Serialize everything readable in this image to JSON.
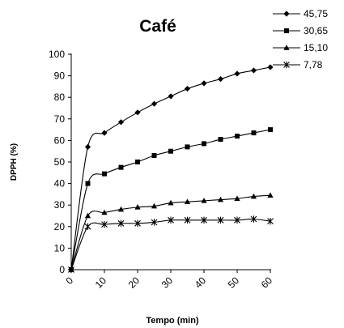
{
  "chart_data": {
    "type": "line",
    "title": "Café",
    "xlabel": "Tempo (min)",
    "ylabel": "DPPH (%)",
    "xlim": [
      0,
      60
    ],
    "ylim": [
      0,
      100
    ],
    "x_ticks": [
      0,
      10,
      20,
      30,
      40,
      50,
      60
    ],
    "y_ticks": [
      0,
      10,
      20,
      30,
      40,
      50,
      60,
      70,
      80,
      90,
      100
    ],
    "grid": false,
    "legend_position": "top-right",
    "series": [
      {
        "name": "45,75",
        "marker": "diamond",
        "x": [
          0,
          5,
          10,
          15,
          20,
          25,
          30,
          35,
          40,
          45,
          50,
          55,
          60
        ],
        "y": [
          0,
          57,
          63.5,
          68.5,
          73,
          77,
          80.5,
          84,
          86.5,
          88.5,
          91,
          92.5,
          94
        ]
      },
      {
        "name": "30,65",
        "marker": "square",
        "x": [
          0,
          5,
          10,
          15,
          20,
          25,
          30,
          35,
          40,
          45,
          50,
          55,
          60
        ],
        "y": [
          0,
          40,
          44.5,
          47.5,
          50,
          53,
          55,
          57,
          58.5,
          60.5,
          62,
          63.5,
          65
        ]
      },
      {
        "name": "15,10",
        "marker": "triangle",
        "x": [
          0,
          5,
          10,
          15,
          20,
          25,
          30,
          35,
          40,
          45,
          50,
          55,
          60
        ],
        "y": [
          0,
          25,
          26.5,
          28,
          29,
          29.5,
          31,
          31.5,
          32,
          32.5,
          33,
          34,
          34.5
        ]
      },
      {
        "name": "7,78",
        "marker": "star",
        "x": [
          0,
          5,
          10,
          15,
          20,
          25,
          30,
          35,
          40,
          45,
          50,
          55,
          60
        ],
        "y": [
          0,
          20,
          21,
          21.5,
          21.5,
          22,
          23,
          23,
          23,
          23,
          23,
          23.5,
          22.5
        ]
      }
    ],
    "colors": {
      "line": "#000000",
      "text": "#000000"
    }
  }
}
